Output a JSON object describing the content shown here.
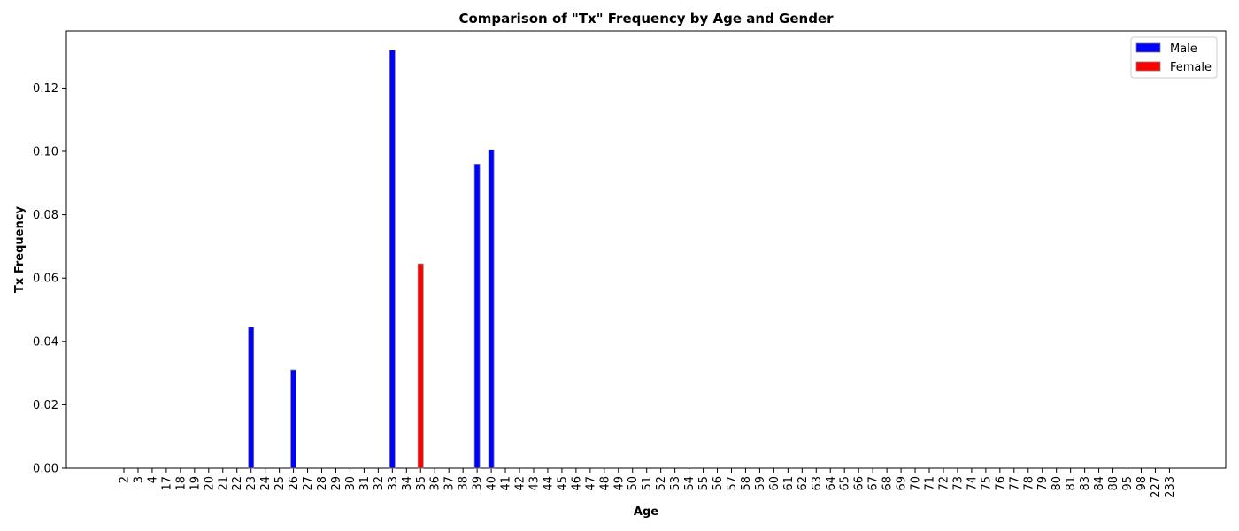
{
  "chart_data": {
    "type": "bar",
    "title": "Comparison of \"Tx\" Frequency by Age and Gender",
    "xlabel": "Age",
    "ylabel": "Tx Frequency",
    "ylim": [
      0,
      0.138
    ],
    "yticks": [
      "0.00",
      "0.02",
      "0.04",
      "0.06",
      "0.08",
      "0.10",
      "0.12"
    ],
    "ytick_values": [
      0,
      0.02,
      0.04,
      0.06,
      0.08,
      0.1,
      0.12
    ],
    "legend_position": "top-right",
    "grid": false,
    "categories": [
      "2",
      "3",
      "4",
      "17",
      "18",
      "19",
      "20",
      "21",
      "22",
      "23",
      "24",
      "25",
      "26",
      "27",
      "28",
      "29",
      "30",
      "31",
      "32",
      "33",
      "34",
      "35",
      "36",
      "37",
      "38",
      "39",
      "40",
      "41",
      "42",
      "43",
      "44",
      "45",
      "46",
      "47",
      "48",
      "49",
      "50",
      "51",
      "52",
      "53",
      "54",
      "55",
      "56",
      "57",
      "58",
      "59",
      "60",
      "61",
      "62",
      "63",
      "64",
      "65",
      "66",
      "67",
      "68",
      "69",
      "70",
      "71",
      "72",
      "73",
      "74",
      "75",
      "76",
      "77",
      "78",
      "79",
      "80",
      "81",
      "83",
      "84",
      "88",
      "95",
      "98",
      "227",
      "233"
    ],
    "series": [
      {
        "name": "Male",
        "color": "#0000ff",
        "points": [
          {
            "x": "23",
            "y": 0.0445
          },
          {
            "x": "26",
            "y": 0.031
          },
          {
            "x": "33",
            "y": 0.132
          },
          {
            "x": "39",
            "y": 0.096
          },
          {
            "x": "40",
            "y": 0.1005
          }
        ]
      },
      {
        "name": "Female",
        "color": "#ff0000",
        "points": [
          {
            "x": "35",
            "y": 0.0645
          }
        ]
      }
    ]
  }
}
